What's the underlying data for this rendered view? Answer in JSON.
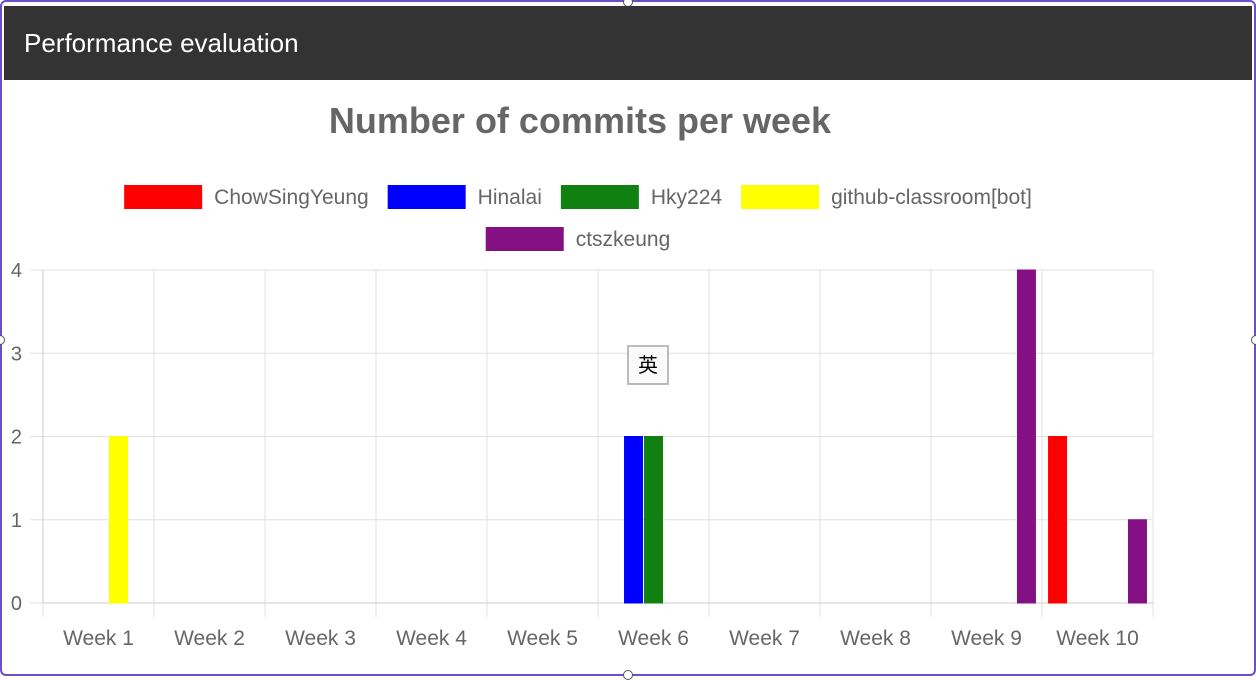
{
  "header": {
    "title": "Performance evaluation"
  },
  "ime_badge": {
    "label": "英"
  },
  "colors": {
    "header_bg": "#333333",
    "frame": "#6a4fc9"
  },
  "chart_data": {
    "type": "bar",
    "title": "Number of commits per week",
    "xlabel": "",
    "ylabel": "",
    "ylim": [
      0,
      4
    ],
    "y_ticks": [
      0,
      1,
      2,
      3,
      4
    ],
    "grid": true,
    "legend_position": "top",
    "categories": [
      "Week 1",
      "Week 2",
      "Week 3",
      "Week 4",
      "Week 5",
      "Week 6",
      "Week 7",
      "Week 8",
      "Week 9",
      "Week 10"
    ],
    "series": [
      {
        "name": "ChowSingYeung",
        "color": "#ff0000",
        "values": [
          0,
          0,
          0,
          0,
          0,
          0,
          0,
          0,
          0,
          2
        ]
      },
      {
        "name": "Hinalai",
        "color": "#0000ff",
        "values": [
          0,
          0,
          0,
          0,
          0,
          2,
          0,
          0,
          0,
          0
        ]
      },
      {
        "name": "Hky224",
        "color": "#108010",
        "values": [
          0,
          0,
          0,
          0,
          0,
          2,
          0,
          0,
          0,
          0
        ]
      },
      {
        "name": "github-classroom[bot]",
        "color": "#ffff00",
        "values": [
          2,
          0,
          0,
          0,
          0,
          0,
          0,
          0,
          0,
          0
        ]
      },
      {
        "name": "ctszkeung",
        "color": "#831183",
        "values": [
          0,
          0,
          0,
          0,
          0,
          0,
          0,
          0,
          4,
          1
        ]
      }
    ]
  }
}
